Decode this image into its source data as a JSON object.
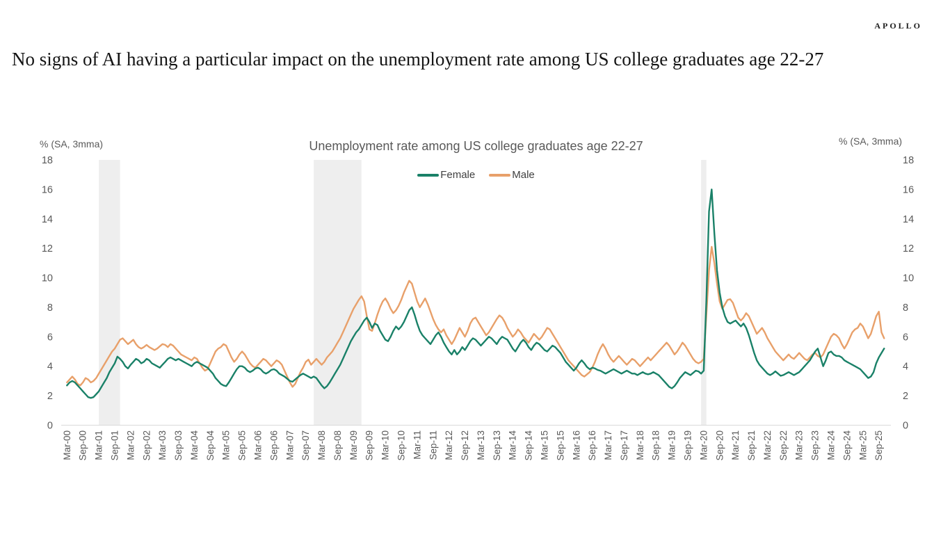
{
  "brand": {
    "logo": "APOLLO"
  },
  "headline": "No signs of AI having a particular impact on the unemployment rate among US college graduates age 22-27",
  "chart": {
    "title": "Unemployment rate among US college graduates age 22-27",
    "left_axis_label": "% (SA, 3mma)",
    "right_axis_label": "% (SA, 3mma)",
    "colors": {
      "recession_band": "#eeeeee",
      "axis_line": "#d9d9d9",
      "tick_text": "#595959",
      "female_line": "#1a8168",
      "male_line": "#e8a06a"
    }
  },
  "chart_data": {
    "type": "line",
    "title": "Unemployment rate among US college graduates age 22-27",
    "xlabel": "",
    "ylabel": "% (SA, 3mma)",
    "ylim": [
      0,
      18
    ],
    "y_ticks": [
      0,
      2,
      4,
      6,
      8,
      10,
      12,
      14,
      16,
      18
    ],
    "grid": false,
    "legend_position": "top-center",
    "frequency": "monthly",
    "x_start": "Mar-00",
    "x_end": "Nov-25",
    "x_tick_labels": [
      "Mar-00",
      "Sep-00",
      "Mar-01",
      "Sep-01",
      "Mar-02",
      "Sep-02",
      "Mar-03",
      "Sep-03",
      "Mar-04",
      "Sep-04",
      "Mar-05",
      "Sep-05",
      "Mar-06",
      "Sep-06",
      "Mar-07",
      "Sep-07",
      "Mar-08",
      "Sep-08",
      "Mar-09",
      "Sep-09",
      "Mar-10",
      "Sep-10",
      "Mar-11",
      "Sep-11",
      "Mar-12",
      "Sep-12",
      "Mar-13",
      "Sep-13",
      "Mar-14",
      "Sep-14",
      "Mar-15",
      "Sep-15",
      "Mar-16",
      "Sep-16",
      "Mar-17",
      "Sep-17",
      "Mar-18",
      "Sep-18",
      "Mar-19",
      "Sep-19",
      "Mar-20",
      "Sep-20",
      "Mar-21",
      "Sep-21",
      "Mar-22",
      "Sep-22",
      "Mar-23",
      "Sep-23",
      "Mar-24",
      "Sep-24",
      "Mar-25",
      "Sep-25"
    ],
    "recession_bands": [
      {
        "from": "Mar-01",
        "to": "Nov-01",
        "from_index": 12,
        "to_index": 20
      },
      {
        "from": "Dec-07",
        "to": "Jun-09",
        "from_index": 93,
        "to_index": 111
      },
      {
        "from": "Feb-20",
        "to": "Apr-20",
        "from_index": 239,
        "to_index": 241
      }
    ],
    "series": [
      {
        "name": "Female",
        "color": "#1a8168",
        "values": [
          2.7,
          2.9,
          3.0,
          2.9,
          2.7,
          2.5,
          2.3,
          2.1,
          1.9,
          1.85,
          1.9,
          2.1,
          2.3,
          2.6,
          2.9,
          3.2,
          3.6,
          3.9,
          4.2,
          4.65,
          4.5,
          4.3,
          4.0,
          3.85,
          4.1,
          4.3,
          4.5,
          4.4,
          4.2,
          4.3,
          4.5,
          4.4,
          4.2,
          4.1,
          4.0,
          3.9,
          4.1,
          4.3,
          4.5,
          4.6,
          4.5,
          4.4,
          4.5,
          4.4,
          4.3,
          4.2,
          4.1,
          4.0,
          4.2,
          4.3,
          4.2,
          4.1,
          4.0,
          3.9,
          3.7,
          3.5,
          3.2,
          3.0,
          2.8,
          2.7,
          2.65,
          2.9,
          3.2,
          3.5,
          3.8,
          4.0,
          4.0,
          3.9,
          3.7,
          3.6,
          3.7,
          3.85,
          3.9,
          3.8,
          3.6,
          3.5,
          3.6,
          3.75,
          3.8,
          3.7,
          3.5,
          3.4,
          3.3,
          3.15,
          3.0,
          2.95,
          3.1,
          3.25,
          3.4,
          3.5,
          3.4,
          3.3,
          3.2,
          3.3,
          3.2,
          2.95,
          2.7,
          2.5,
          2.65,
          2.9,
          3.2,
          3.5,
          3.8,
          4.1,
          4.5,
          4.9,
          5.3,
          5.7,
          6.0,
          6.3,
          6.5,
          6.8,
          7.1,
          7.3,
          7.0,
          6.6,
          6.9,
          6.8,
          6.4,
          6.1,
          5.8,
          5.7,
          6.0,
          6.4,
          6.7,
          6.5,
          6.7,
          7.0,
          7.4,
          7.8,
          8.0,
          7.5,
          6.9,
          6.4,
          6.1,
          5.9,
          5.7,
          5.5,
          5.8,
          6.1,
          6.3,
          6.0,
          5.6,
          5.3,
          5.0,
          4.8,
          5.1,
          4.8,
          5.0,
          5.3,
          5.1,
          5.4,
          5.7,
          5.9,
          5.8,
          5.6,
          5.4,
          5.6,
          5.8,
          6.0,
          5.9,
          5.7,
          5.5,
          5.8,
          6.0,
          5.9,
          5.8,
          5.5,
          5.2,
          5.0,
          5.3,
          5.6,
          5.8,
          5.6,
          5.3,
          5.1,
          5.4,
          5.6,
          5.5,
          5.3,
          5.1,
          5.0,
          5.2,
          5.4,
          5.3,
          5.1,
          4.9,
          4.6,
          4.3,
          4.1,
          3.9,
          3.7,
          3.9,
          4.2,
          4.4,
          4.2,
          3.95,
          3.8,
          3.9,
          3.85,
          3.75,
          3.7,
          3.6,
          3.5,
          3.6,
          3.7,
          3.8,
          3.7,
          3.6,
          3.5,
          3.6,
          3.7,
          3.6,
          3.5,
          3.5,
          3.4,
          3.5,
          3.6,
          3.5,
          3.45,
          3.5,
          3.6,
          3.5,
          3.4,
          3.2,
          3.0,
          2.8,
          2.6,
          2.5,
          2.65,
          2.9,
          3.2,
          3.4,
          3.6,
          3.5,
          3.4,
          3.55,
          3.7,
          3.65,
          3.5,
          3.7,
          8.5,
          14.5,
          16.0,
          13.0,
          10.5,
          9.0,
          8.0,
          7.4,
          7.0,
          6.9,
          7.0,
          7.1,
          6.9,
          6.7,
          6.9,
          6.6,
          6.1,
          5.5,
          4.9,
          4.4,
          4.1,
          3.9,
          3.7,
          3.5,
          3.4,
          3.5,
          3.65,
          3.5,
          3.35,
          3.4,
          3.5,
          3.6,
          3.5,
          3.4,
          3.5,
          3.6,
          3.8,
          4.0,
          4.2,
          4.4,
          4.7,
          5.0,
          5.2,
          4.6,
          4.0,
          4.4,
          4.9,
          5.0,
          4.8,
          4.7,
          4.7,
          4.6,
          4.4,
          4.3,
          4.2,
          4.1,
          4.0,
          3.9,
          3.8,
          3.6,
          3.4,
          3.2,
          3.3,
          3.6,
          4.2,
          4.6,
          4.9,
          5.2
        ]
      },
      {
        "name": "Male",
        "color": "#e8a06a",
        "values": [
          2.9,
          3.1,
          3.3,
          3.1,
          2.8,
          2.7,
          2.9,
          3.2,
          3.1,
          2.9,
          3.0,
          3.2,
          3.5,
          3.8,
          4.1,
          4.4,
          4.7,
          5.0,
          5.2,
          5.5,
          5.8,
          5.9,
          5.7,
          5.5,
          5.65,
          5.8,
          5.5,
          5.3,
          5.2,
          5.3,
          5.45,
          5.3,
          5.2,
          5.1,
          5.2,
          5.35,
          5.5,
          5.45,
          5.3,
          5.5,
          5.4,
          5.2,
          5.0,
          4.8,
          4.7,
          4.6,
          4.5,
          4.4,
          4.6,
          4.5,
          4.2,
          3.9,
          3.7,
          3.8,
          4.2,
          4.6,
          5.0,
          5.2,
          5.3,
          5.5,
          5.4,
          5.0,
          4.6,
          4.3,
          4.5,
          4.8,
          5.0,
          4.8,
          4.5,
          4.2,
          4.0,
          3.9,
          4.1,
          4.3,
          4.5,
          4.4,
          4.2,
          4.0,
          4.2,
          4.4,
          4.3,
          4.1,
          3.7,
          3.3,
          2.9,
          2.6,
          2.8,
          3.2,
          3.6,
          3.9,
          4.3,
          4.45,
          4.1,
          4.3,
          4.5,
          4.3,
          4.1,
          4.3,
          4.6,
          4.8,
          5.0,
          5.3,
          5.6,
          5.9,
          6.3,
          6.7,
          7.1,
          7.5,
          7.9,
          8.2,
          8.5,
          8.75,
          8.4,
          7.4,
          6.5,
          6.4,
          6.9,
          7.5,
          8.0,
          8.4,
          8.6,
          8.3,
          7.9,
          7.6,
          7.8,
          8.1,
          8.5,
          9.0,
          9.4,
          9.8,
          9.6,
          9.0,
          8.4,
          8.0,
          8.3,
          8.6,
          8.2,
          7.7,
          7.2,
          6.8,
          6.5,
          6.3,
          6.5,
          6.1,
          5.8,
          5.5,
          5.8,
          6.2,
          6.6,
          6.3,
          6.0,
          6.4,
          6.9,
          7.2,
          7.3,
          7.0,
          6.7,
          6.4,
          6.1,
          6.3,
          6.6,
          6.9,
          7.2,
          7.45,
          7.3,
          7.0,
          6.6,
          6.3,
          6.0,
          6.2,
          6.5,
          6.3,
          6.0,
          5.8,
          5.6,
          5.9,
          6.2,
          6.0,
          5.8,
          6.0,
          6.3,
          6.6,
          6.5,
          6.2,
          5.9,
          5.6,
          5.3,
          5.0,
          4.7,
          4.4,
          4.2,
          4.0,
          3.8,
          3.6,
          3.4,
          3.3,
          3.45,
          3.6,
          3.9,
          4.3,
          4.8,
          5.2,
          5.5,
          5.2,
          4.8,
          4.5,
          4.3,
          4.5,
          4.7,
          4.5,
          4.3,
          4.1,
          4.3,
          4.5,
          4.4,
          4.2,
          4.0,
          4.2,
          4.4,
          4.6,
          4.4,
          4.6,
          4.8,
          5.0,
          5.2,
          5.4,
          5.6,
          5.4,
          5.1,
          4.8,
          5.0,
          5.3,
          5.6,
          5.4,
          5.1,
          4.8,
          4.5,
          4.3,
          4.2,
          4.3,
          4.5,
          7.5,
          10.5,
          12.1,
          11.0,
          9.6,
          8.4,
          7.9,
          8.2,
          8.5,
          8.55,
          8.3,
          7.8,
          7.3,
          7.1,
          7.3,
          7.6,
          7.4,
          7.0,
          6.6,
          6.2,
          6.4,
          6.6,
          6.3,
          5.9,
          5.6,
          5.3,
          5.0,
          4.8,
          4.6,
          4.4,
          4.6,
          4.8,
          4.6,
          4.5,
          4.7,
          4.9,
          4.7,
          4.5,
          4.4,
          4.6,
          4.8,
          4.9,
          4.7,
          4.6,
          4.8,
          5.2,
          5.6,
          6.0,
          6.2,
          6.1,
          5.9,
          5.5,
          5.2,
          5.5,
          5.9,
          6.3,
          6.5,
          6.6,
          6.9,
          6.7,
          6.3,
          5.9,
          6.2,
          6.8,
          7.4,
          7.7,
          6.3,
          5.9
        ]
      }
    ]
  }
}
